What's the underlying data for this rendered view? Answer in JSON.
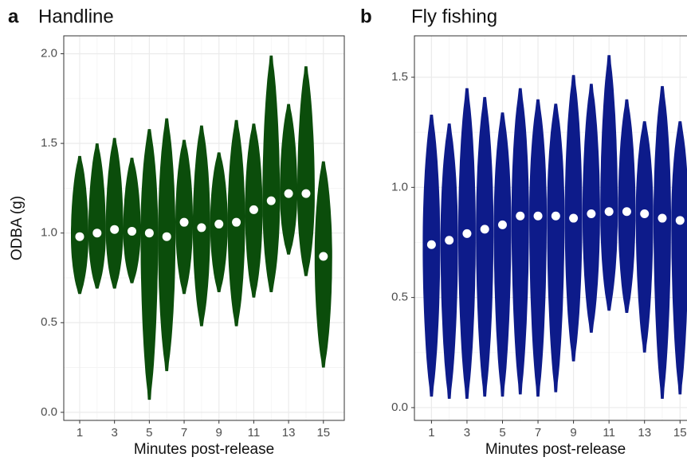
{
  "chart_data": [
    {
      "type": "violin",
      "panel": "a",
      "title": "Handline",
      "x_label": "Minutes post-release",
      "y_label": "ODBA (g)",
      "x": [
        1,
        2,
        3,
        4,
        5,
        6,
        7,
        8,
        9,
        10,
        11,
        12,
        13,
        14,
        15
      ],
      "min": [
        0.66,
        0.69,
        0.69,
        0.72,
        0.07,
        0.23,
        0.66,
        0.48,
        0.67,
        0.48,
        0.64,
        0.67,
        0.88,
        0.76,
        0.25
      ],
      "max": [
        1.43,
        1.5,
        1.53,
        1.42,
        1.58,
        1.64,
        1.52,
        1.6,
        1.45,
        1.63,
        1.61,
        1.99,
        1.72,
        1.93,
        1.4
      ],
      "values": [
        0.98,
        1.0,
        1.02,
        1.01,
        1.0,
        0.98,
        1.06,
        1.03,
        1.05,
        1.06,
        1.13,
        1.18,
        1.22,
        1.22,
        0.87
      ],
      "color": "#0b4d0b",
      "point_color": "#ffffff",
      "xlim": [
        0.085,
        16.2
      ],
      "xticks": [
        1,
        3,
        5,
        7,
        9,
        11,
        13,
        15
      ],
      "ylim": [
        -0.045,
        2.1
      ],
      "yticks": [
        {
          "value": 0,
          "label": "0.0"
        },
        {
          "value": 0.5,
          "label": "0.5"
        },
        {
          "value": 1,
          "label": "1.0"
        },
        {
          "value": 1.5,
          "label": "1.5"
        },
        {
          "value": 2,
          "label": "2.0"
        }
      ],
      "grid": true
    },
    {
      "type": "violin",
      "panel": "b",
      "title": "Fly fishing",
      "x_label": "Minutes post-release",
      "x": [
        1,
        2,
        3,
        4,
        5,
        6,
        7,
        8,
        9,
        10,
        11,
        12,
        13,
        14,
        15
      ],
      "min": [
        0.05,
        0.04,
        0.04,
        0.05,
        0.05,
        0.06,
        0.05,
        0.07,
        0.21,
        0.34,
        0.44,
        0.43,
        0.25,
        0.04,
        0.06
      ],
      "max": [
        1.33,
        1.29,
        1.45,
        1.41,
        1.34,
        1.45,
        1.4,
        1.38,
        1.51,
        1.47,
        1.6,
        1.4,
        1.3,
        1.46,
        1.3
      ],
      "values": [
        0.74,
        0.76,
        0.79,
        0.81,
        0.83,
        0.87,
        0.87,
        0.87,
        0.86,
        0.88,
        0.89,
        0.89,
        0.88,
        0.86,
        0.85
      ],
      "color": "#0d1b8a",
      "point_color": "#ffffff",
      "xlim": [
        0.04,
        16.2
      ],
      "xticks": [
        1,
        3,
        5,
        7,
        9,
        11,
        13,
        15
      ],
      "ylim": [
        -0.058,
        1.688
      ],
      "yticks": [
        {
          "value": 0,
          "label": "0.0"
        },
        {
          "value": 0.5,
          "label": "0.5"
        },
        {
          "value": 1,
          "label": "1.0"
        },
        {
          "value": 1.5,
          "label": "1.5"
        }
      ],
      "grid": true
    }
  ]
}
